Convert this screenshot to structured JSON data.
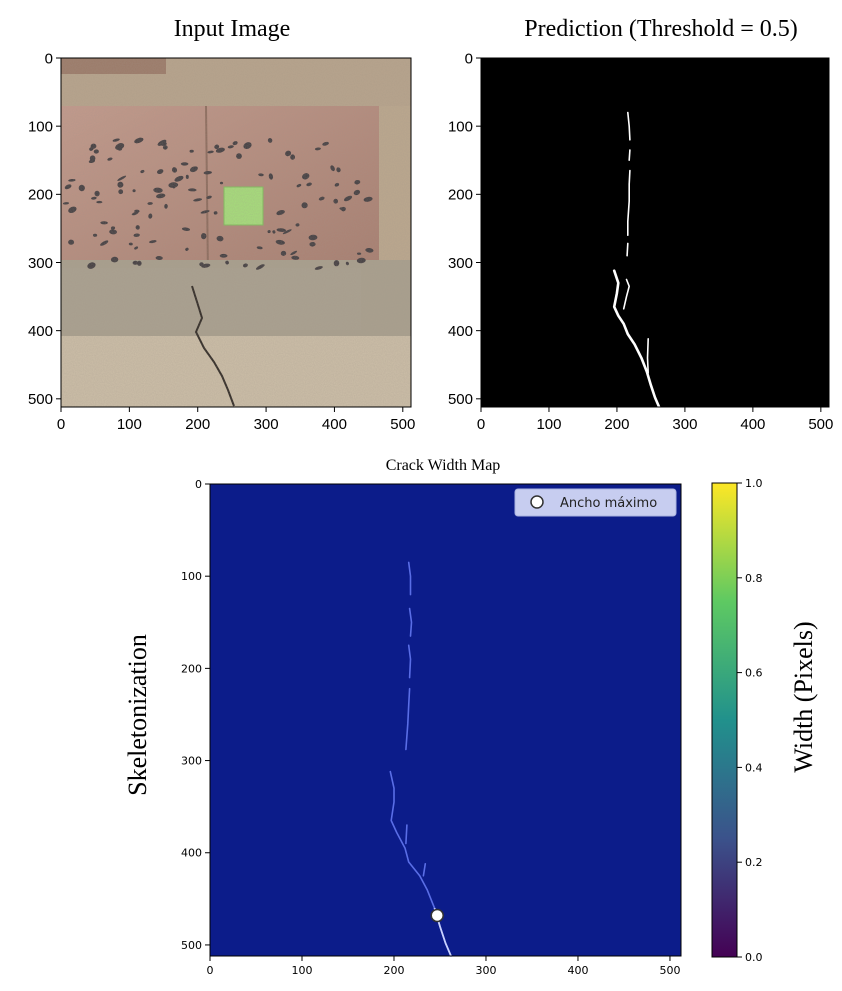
{
  "figure": {
    "colors": {
      "background": "#ffffff",
      "axis": "#000000",
      "mask_bg": "#000000",
      "mask_crack": "#ffffff",
      "map_bg": "#0c1c8a",
      "map_crack": "#5a6ee6",
      "marker_fill": "#ffffff",
      "legend_box": "#c7cdf0",
      "colorbar_stops": [
        "#440154",
        "#3b528b",
        "#21918c",
        "#5ec962",
        "#fde725"
      ]
    },
    "icons": {
      "photo": "masonry-wall-photo",
      "marker": "circle-marker-icon"
    }
  },
  "chart_data": [
    {
      "type": "image",
      "title": "Input Image",
      "xlim": [
        0,
        512
      ],
      "ylim": [
        512,
        0
      ],
      "x_ticks": [
        "0",
        "100",
        "200",
        "300",
        "400",
        "500"
      ],
      "y_ticks": [
        "0",
        "100",
        "200",
        "300",
        "400",
        "500"
      ],
      "content": "photo of masonry wall with a green square and a crack in the lower half"
    },
    {
      "type": "image",
      "title": "Prediction (Threshold = 0.5)",
      "xlim": [
        0,
        512
      ],
      "ylim": [
        512,
        0
      ],
      "x_ticks": [
        "0",
        "100",
        "200",
        "300",
        "400",
        "500"
      ],
      "y_ticks": [
        "0",
        "100",
        "200",
        "300",
        "400",
        "500"
      ],
      "crack_segments": [
        [
          [
            216,
            80
          ],
          [
            218,
            100
          ],
          [
            219,
            120
          ]
        ],
        [
          [
            219,
            135
          ],
          [
            218,
            150
          ]
        ],
        [
          [
            219,
            165
          ],
          [
            218,
            185
          ],
          [
            218,
            210
          ],
          [
            216,
            240
          ],
          [
            216,
            260
          ]
        ],
        [
          [
            216,
            272
          ],
          [
            215,
            290
          ]
        ],
        [
          [
            196,
            312
          ],
          [
            202,
            330
          ],
          [
            200,
            345
          ],
          [
            196,
            365
          ],
          [
            202,
            378
          ],
          [
            210,
            390
          ],
          [
            216,
            405
          ],
          [
            226,
            420
          ],
          [
            236,
            440
          ],
          [
            244,
            460
          ],
          [
            250,
            480
          ],
          [
            256,
            498
          ],
          [
            262,
            512
          ]
        ],
        [
          [
            210,
            368
          ],
          [
            214,
            350
          ],
          [
            218,
            335
          ],
          [
            214,
            325
          ]
        ],
        [
          [
            246,
            412
          ],
          [
            245,
            440
          ],
          [
            246,
            462
          ]
        ]
      ]
    },
    {
      "type": "heatmap",
      "title": "Crack Width Map",
      "ylabel": "Skeletonization",
      "xlim": [
        0,
        512
      ],
      "ylim": [
        512,
        0
      ],
      "x_ticks": [
        "0",
        "100",
        "200",
        "300",
        "400",
        "500"
      ],
      "y_ticks": [
        "0",
        "100",
        "200",
        "300",
        "400",
        "500"
      ],
      "legend": {
        "label": "Ancho máximo",
        "position": "top-right"
      },
      "max_point": {
        "x": 247,
        "y": 468
      },
      "skeleton_segments": [
        [
          [
            216,
            85
          ],
          [
            218,
            100
          ],
          [
            218,
            120
          ]
        ],
        [
          [
            217,
            135
          ],
          [
            219,
            150
          ],
          [
            218,
            165
          ]
        ],
        [
          [
            216,
            175
          ],
          [
            218,
            190
          ],
          [
            217,
            210
          ]
        ],
        [
          [
            217,
            222
          ],
          [
            216,
            240
          ],
          [
            215,
            260
          ],
          [
            213,
            288
          ]
        ],
        [
          [
            196,
            312
          ],
          [
            200,
            330
          ],
          [
            200,
            345
          ],
          [
            197,
            365
          ],
          [
            203,
            378
          ],
          [
            212,
            395
          ],
          [
            216,
            410
          ],
          [
            228,
            425
          ],
          [
            236,
            440
          ],
          [
            244,
            460
          ],
          [
            250,
            480
          ],
          [
            256,
            498
          ],
          [
            262,
            512
          ]
        ],
        [
          [
            213,
            390
          ],
          [
            214,
            370
          ]
        ],
        [
          [
            232,
            425
          ],
          [
            234,
            412
          ]
        ]
      ],
      "colorbar": {
        "label": "Width (Pixels)",
        "range": [
          0.0,
          1.0
        ],
        "ticks": [
          "0.0",
          "0.2",
          "0.4",
          "0.6",
          "0.8",
          "1.0"
        ]
      }
    }
  ]
}
